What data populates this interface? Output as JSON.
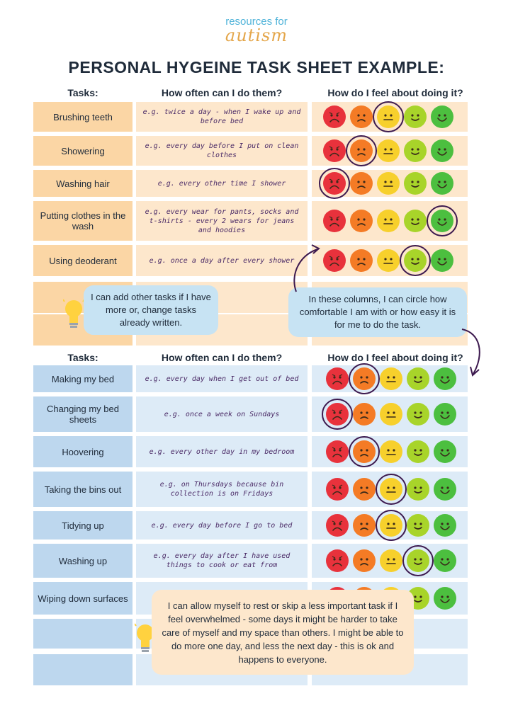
{
  "logo": {
    "line1": "resources for",
    "line2": "autism"
  },
  "title": "PERSONAL HYGEINE TASK SHEET EXAMPLE:",
  "headers": {
    "tasks": "Tasks:",
    "often": "How often can I do them?",
    "feel": "How do I feel about doing it?"
  },
  "section1": {
    "rows": [
      {
        "task": "Brushing teeth",
        "freq": "e.g. twice a day - when I wake up and before bed",
        "circled": "neutral"
      },
      {
        "task": "Showering",
        "freq": "e.g. every day before I put on clean clothes",
        "circled": "sad"
      },
      {
        "task": "Washing hair",
        "freq": "e.g. every other time I shower",
        "circled": "very-sad"
      },
      {
        "task": "Putting clothes in the wash",
        "freq": "e.g. every wear for pants, socks and t-shirts - every 2 wears for jeans and hoodies",
        "circled": "very-happy"
      },
      {
        "task": "Using deoderant",
        "freq": "e.g. once a day after every shower",
        "circled": "happy"
      }
    ],
    "tip": "I can add other tasks if I have more or, change tasks already written.",
    "note": "In these columns, I can circle how comfortable I am with or how easy it is for me to do the task."
  },
  "section2": {
    "rows": [
      {
        "task": "Making my bed",
        "freq": "e.g. every day when I get out of bed",
        "circled": "sad"
      },
      {
        "task": "Changing my bed sheets",
        "freq": "e.g. once a week on Sundays",
        "circled": "very-sad"
      },
      {
        "task": "Hoovering",
        "freq": "e.g. every other day in my bedroom",
        "circled": "sad"
      },
      {
        "task": "Taking the bins out",
        "freq": "e.g. on Thursdays because bin collection is on Fridays",
        "circled": "neutral"
      },
      {
        "task": "Tidying up",
        "freq": "e.g. every day before I go to bed",
        "circled": "neutral"
      },
      {
        "task": "Washing up",
        "freq": "e.g. every day after I have used things to cook or eat from",
        "circled": "happy"
      },
      {
        "task": "Wiping down surfaces",
        "freq": "",
        "circled": ""
      }
    ],
    "tip": "I can allow myself to rest or skip a less important task  if I feel overwhelmed - some days it might be harder to take care of myself and my space than others. I might be able to do more one day, and less the next day - this is ok and happens to everyone."
  },
  "faces": [
    {
      "name": "very-sad",
      "color": "#e8323c"
    },
    {
      "name": "sad",
      "color": "#f47b25"
    },
    {
      "name": "neutral",
      "color": "#f7d02c"
    },
    {
      "name": "happy",
      "color": "#a8d42a"
    },
    {
      "name": "very-happy",
      "color": "#4cbf3f"
    }
  ],
  "colors": {
    "orange_task": "#fbd6a5",
    "orange_cell": "#fde7cc",
    "blue_task": "#bdd7ee",
    "blue_cell": "#ddebf7",
    "circle": "#3d1a4f"
  }
}
